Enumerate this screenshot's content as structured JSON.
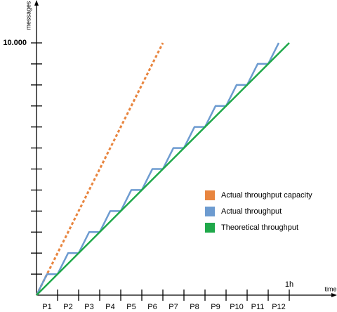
{
  "chart_data": {
    "type": "line",
    "y_label": "messages",
    "x_label": "time",
    "categories": [
      "P1",
      "P2",
      "P3",
      "P4",
      "P5",
      "P6",
      "P7",
      "P8",
      "P9",
      "P10",
      "P11",
      "P12"
    ],
    "xlim": [
      0,
      14.1
    ],
    "ylim": [
      0,
      11700
    ],
    "xticks": [
      {
        "value": 12,
        "label": "1h"
      }
    ],
    "xtick_marks": [
      1,
      2,
      3,
      4,
      5,
      6,
      7,
      8,
      9,
      10,
      11,
      12
    ],
    "yticks": [
      {
        "value": 10000,
        "label": "10.000"
      }
    ],
    "ytick_marks": [
      833,
      1667,
      2500,
      3333,
      4167,
      5000,
      5833,
      6667,
      7500,
      8333,
      9167,
      10000
    ],
    "series": [
      {
        "name": "Actual throughput capacity",
        "color": "#e8853f",
        "dashed": true,
        "x": [
          0,
          6
        ],
        "values": [
          0,
          10000
        ]
      },
      {
        "name": "Actual throughput",
        "color": "#6d9bd0",
        "dashed": false,
        "x": [
          0,
          0.5,
          1,
          1.5,
          2,
          2.5,
          3,
          3.5,
          4,
          4.5,
          5,
          5.5,
          6,
          6.5,
          7,
          7.5,
          8,
          8.5,
          9,
          9.5,
          10,
          10.5,
          11,
          11.5
        ],
        "values": [
          0,
          833,
          833,
          1667,
          1667,
          2500,
          2500,
          3333,
          3333,
          4167,
          4167,
          5000,
          5000,
          5833,
          5833,
          6667,
          6667,
          7500,
          7500,
          8333,
          8333,
          9167,
          9167,
          10000
        ]
      },
      {
        "name": "Theoretical throughput",
        "color": "#1fa84a",
        "dashed": false,
        "x": [
          0,
          12
        ],
        "values": [
          0,
          10000
        ]
      }
    ]
  }
}
